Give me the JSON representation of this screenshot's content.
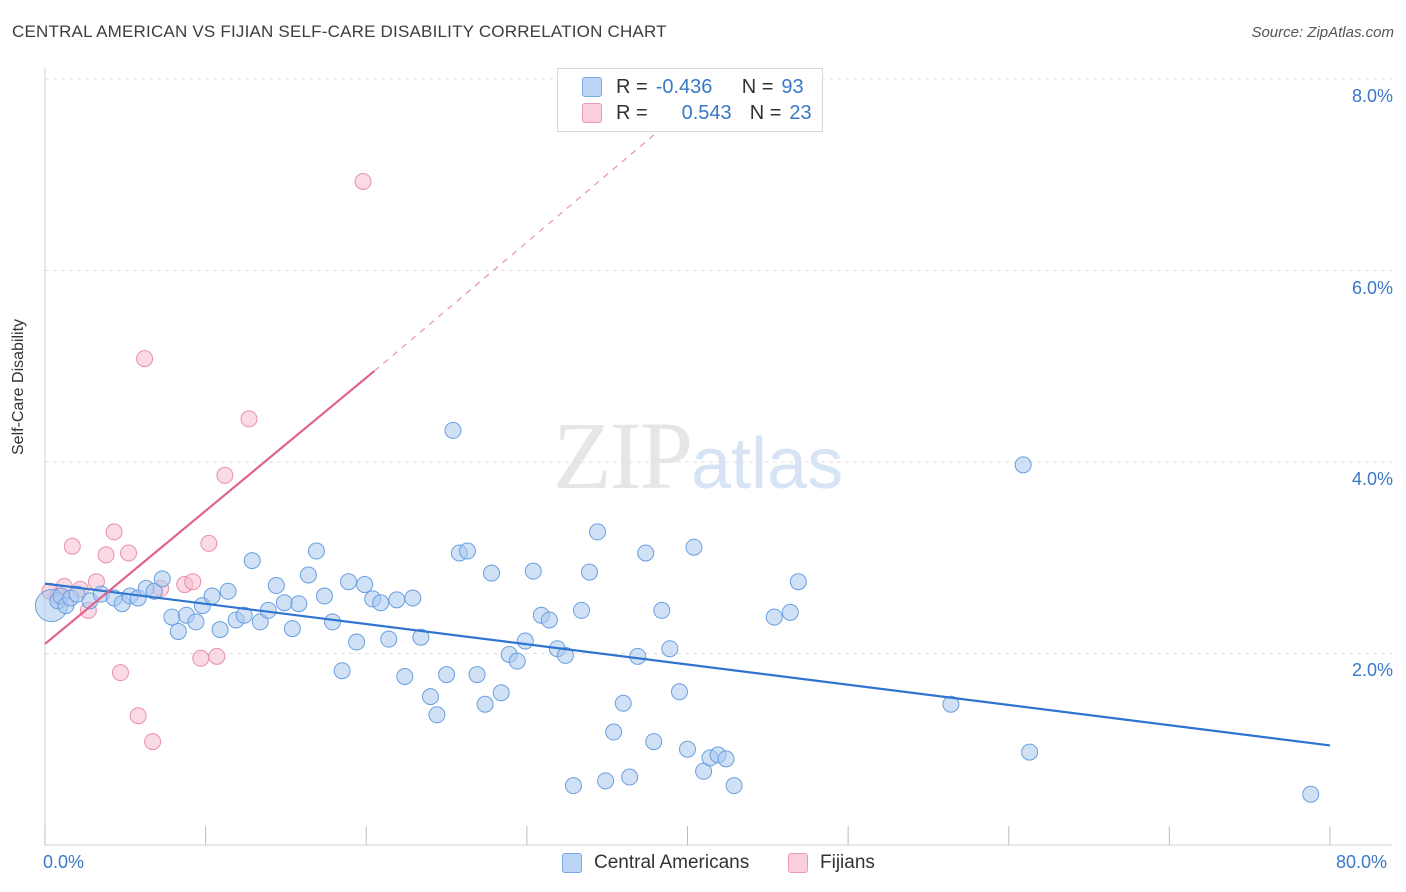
{
  "title": "CENTRAL AMERICAN VS FIJIAN SELF-CARE DISABILITY CORRELATION CHART",
  "source": "Source: ZipAtlas.com",
  "watermark": {
    "zip": "ZIP",
    "atlas": "atlas"
  },
  "legend": {
    "row1": {
      "r_label": "R =",
      "r_value": "-0.436",
      "n_label": "N =",
      "n_value": "93"
    },
    "row2": {
      "r_label": "R =",
      "r_value": "0.543",
      "n_label": "N =",
      "n_value": "23"
    }
  },
  "colors": {
    "blue_fill": "#a9c8ef",
    "blue_stroke": "#6a9fe0",
    "blue_line": "#2f74d0",
    "pink_fill": "#f6bccd",
    "pink_stroke": "#ea8fab",
    "pink_line": "#e0638e",
    "grid": "#e0e0e0",
    "tick_text": "#3a78c9"
  },
  "chart_data": {
    "type": "scatter",
    "title": "CENTRAL AMERICAN VS FIJIAN SELF-CARE DISABILITY CORRELATION CHART",
    "xlabel": "",
    "ylabel": "Self-Care Disability",
    "xlim": [
      0,
      80
    ],
    "ylim": [
      0,
      8.0
    ],
    "x_tick_labels": [
      "0.0%",
      "80.0%"
    ],
    "y_tick_labels": [
      "8.0%",
      "6.0%",
      "4.0%",
      "2.0%"
    ],
    "y_ticks": [
      8.0,
      6.0,
      4.0,
      2.0
    ],
    "grid": true,
    "series": [
      {
        "name": "Central Americans",
        "color": "#a9c8ef",
        "trend": {
          "x": [
            0,
            80
          ],
          "y": [
            2.73,
            1.04
          ]
        },
        "points": [
          [
            0.4,
            2.5
          ],
          [
            0.8,
            2.55
          ],
          [
            1.0,
            2.6
          ],
          [
            1.3,
            2.5
          ],
          [
            1.6,
            2.58
          ],
          [
            2.0,
            2.62
          ],
          [
            2.8,
            2.55
          ],
          [
            3.5,
            2.62
          ],
          [
            4.3,
            2.58
          ],
          [
            4.8,
            2.52
          ],
          [
            5.3,
            2.6
          ],
          [
            5.8,
            2.58
          ],
          [
            6.3,
            2.68
          ],
          [
            6.8,
            2.65
          ],
          [
            7.3,
            2.78
          ],
          [
            7.9,
            2.38
          ],
          [
            8.3,
            2.23
          ],
          [
            8.8,
            2.4
          ],
          [
            9.4,
            2.33
          ],
          [
            9.8,
            2.5
          ],
          [
            10.4,
            2.6
          ],
          [
            10.9,
            2.25
          ],
          [
            11.4,
            2.65
          ],
          [
            11.9,
            2.35
          ],
          [
            12.4,
            2.4
          ],
          [
            12.9,
            2.97
          ],
          [
            13.4,
            2.33
          ],
          [
            13.9,
            2.45
          ],
          [
            14.4,
            2.71
          ],
          [
            14.9,
            2.53
          ],
          [
            15.4,
            2.26
          ],
          [
            15.8,
            2.52
          ],
          [
            16.4,
            2.82
          ],
          [
            16.9,
            3.07
          ],
          [
            17.4,
            2.6
          ],
          [
            17.9,
            2.33
          ],
          [
            18.5,
            1.82
          ],
          [
            18.9,
            2.75
          ],
          [
            19.4,
            2.12
          ],
          [
            19.9,
            2.72
          ],
          [
            20.4,
            2.57
          ],
          [
            20.9,
            2.53
          ],
          [
            21.4,
            2.15
          ],
          [
            21.9,
            2.56
          ],
          [
            22.4,
            1.76
          ],
          [
            22.9,
            2.58
          ],
          [
            23.4,
            2.17
          ],
          [
            24.0,
            1.55
          ],
          [
            24.4,
            1.36
          ],
          [
            25.0,
            1.78
          ],
          [
            25.4,
            4.33
          ],
          [
            25.8,
            3.05
          ],
          [
            26.3,
            3.07
          ],
          [
            26.9,
            1.78
          ],
          [
            27.4,
            1.47
          ],
          [
            27.8,
            2.84
          ],
          [
            28.4,
            1.59
          ],
          [
            28.9,
            1.99
          ],
          [
            29.4,
            1.92
          ],
          [
            29.9,
            2.13
          ],
          [
            30.4,
            2.86
          ],
          [
            30.9,
            2.4
          ],
          [
            31.4,
            2.35
          ],
          [
            31.9,
            2.05
          ],
          [
            32.4,
            1.98
          ],
          [
            32.9,
            0.62
          ],
          [
            33.4,
            2.45
          ],
          [
            33.9,
            2.85
          ],
          [
            34.4,
            3.27
          ],
          [
            34.9,
            0.67
          ],
          [
            35.4,
            1.18
          ],
          [
            36.0,
            1.48
          ],
          [
            36.4,
            0.71
          ],
          [
            36.9,
            1.97
          ],
          [
            37.4,
            3.05
          ],
          [
            37.9,
            1.08
          ],
          [
            38.4,
            2.45
          ],
          [
            38.9,
            2.05
          ],
          [
            39.5,
            1.6
          ],
          [
            40.0,
            1.0
          ],
          [
            40.4,
            3.11
          ],
          [
            41.0,
            0.77
          ],
          [
            41.4,
            0.91
          ],
          [
            41.9,
            0.94
          ],
          [
            42.4,
            0.9
          ],
          [
            42.9,
            0.62
          ],
          [
            45.4,
            2.38
          ],
          [
            46.4,
            2.43
          ],
          [
            46.9,
            2.75
          ],
          [
            56.4,
            1.47
          ],
          [
            60.9,
            3.97
          ],
          [
            61.3,
            0.97
          ],
          [
            78.8,
            0.53
          ]
        ]
      },
      {
        "name": "Fijians",
        "color": "#f6bccd",
        "trend": {
          "x": [
            0,
            20.5
          ],
          "y": [
            2.1,
            4.95
          ]
        },
        "trend_extension": {
          "x": [
            20.5,
            38.5
          ],
          "y": [
            4.95,
            7.5
          ]
        },
        "points": [
          [
            0.3,
            2.65
          ],
          [
            0.8,
            2.6
          ],
          [
            1.2,
            2.7
          ],
          [
            1.7,
            3.12
          ],
          [
            2.2,
            2.67
          ],
          [
            2.7,
            2.45
          ],
          [
            3.2,
            2.75
          ],
          [
            3.8,
            3.03
          ],
          [
            4.3,
            3.27
          ],
          [
            4.7,
            1.8
          ],
          [
            5.2,
            3.05
          ],
          [
            5.8,
            1.35
          ],
          [
            6.2,
            5.08
          ],
          [
            6.7,
            1.08
          ],
          [
            7.2,
            2.68
          ],
          [
            8.7,
            2.72
          ],
          [
            9.2,
            2.75
          ],
          [
            9.7,
            1.95
          ],
          [
            10.2,
            3.15
          ],
          [
            10.7,
            1.97
          ],
          [
            11.2,
            3.86
          ],
          [
            12.7,
            4.45
          ],
          [
            19.8,
            6.93
          ]
        ]
      }
    ]
  }
}
